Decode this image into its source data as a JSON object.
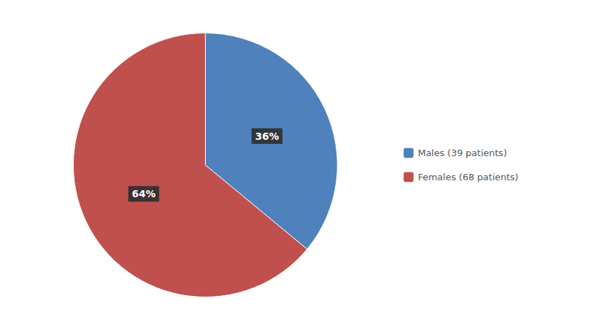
{
  "chart_data": {
    "type": "pie",
    "categories": [
      "Males (39 patients)",
      "Females (68 patients)"
    ],
    "values": [
      36,
      64
    ],
    "value_labels": [
      "36%",
      "64%"
    ],
    "colors": [
      "#4f81bd",
      "#c0504d"
    ],
    "data_labels": true,
    "legend": "right"
  }
}
